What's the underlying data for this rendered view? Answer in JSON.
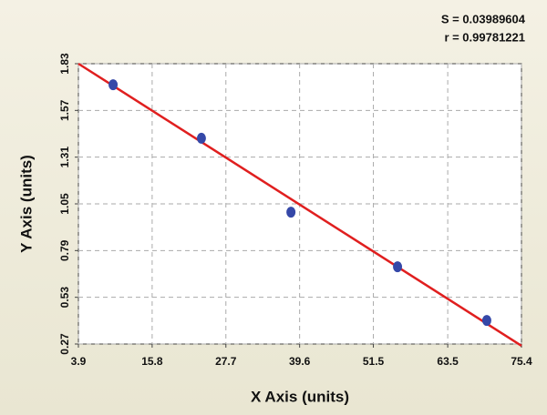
{
  "chart_data": {
    "type": "scatter",
    "x_label": "X Axis (units)",
    "y_label": "Y Axis (units)",
    "annotations": [
      "S = 0.03989604",
      "r = 0.99781221"
    ],
    "series": [
      {
        "x": [
          9.5,
          23.75,
          38.2,
          55.4,
          69.8
        ],
        "values": [
          1.713,
          1.415,
          1.004,
          0.7,
          0.401
        ],
        "color": "#3548a8"
      }
    ],
    "fit_line": {
      "x": [
        3.9,
        75.4
      ],
      "values": [
        1.83,
        0.26
      ],
      "color": "#e01f1f"
    },
    "xlim": [
      3.9,
      75.4
    ],
    "xticks": [
      3.9,
      15.8,
      27.7,
      39.6,
      51.5,
      63.5,
      75.4
    ],
    "ylim": [
      0.27,
      1.83
    ],
    "yticks": [
      0.27,
      0.53,
      0.79,
      1.05,
      1.31,
      1.57,
      1.83
    ],
    "grid": true
  }
}
